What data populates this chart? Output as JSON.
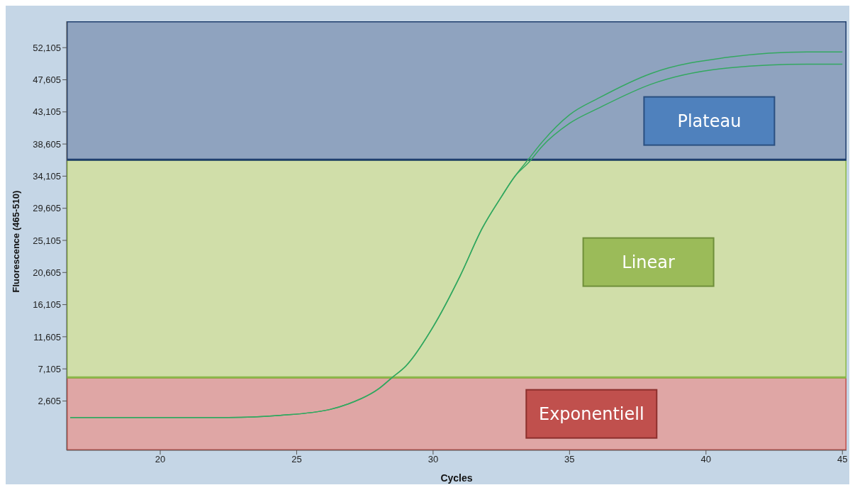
{
  "chart_data": {
    "type": "line",
    "xlabel": "Cycles",
    "ylabel": "Fluorescence (465-510)",
    "x": [
      16.7,
      20,
      22.5,
      24.4,
      26.2,
      26.9,
      28.0,
      28.5,
      29.0,
      30.0,
      31.0,
      31.8,
      32.5,
      33.0,
      33.5,
      34.0,
      35.0,
      36.1,
      38.0,
      40.9,
      43.7,
      45.0
    ],
    "series": [
      {
        "color": "#33a860",
        "values": [
          300,
          300,
          300,
          600,
          1400,
          2200,
          4300,
          5900,
          7500,
          13000,
          20200,
          26800,
          31200,
          34100,
          36500,
          38900,
          42700,
          45100,
          48500,
          50800,
          51500,
          51500
        ]
      },
      {
        "color": "#33a860",
        "values": [
          300,
          300,
          300,
          600,
          1400,
          2200,
          4300,
          5900,
          7500,
          13000,
          20200,
          26800,
          31200,
          34100,
          36000,
          38300,
          41500,
          43700,
          47000,
          49300,
          49800,
          49800
        ]
      }
    ],
    "xlim": [
      16.57,
      45.15
    ],
    "xticks": [
      20,
      25,
      30,
      35,
      40,
      45
    ],
    "ylim": [
      -4300,
      55800
    ],
    "yticks": [
      {
        "value": 2605,
        "label": "2,605"
      },
      {
        "value": 7105,
        "label": "7,105"
      },
      {
        "value": 11605,
        "label": "11,605"
      },
      {
        "value": 16105,
        "label": "16,105"
      },
      {
        "value": 20605,
        "label": "20,605"
      },
      {
        "value": 25105,
        "label": "25,105"
      },
      {
        "value": 29605,
        "label": "29,605"
      },
      {
        "value": 34105,
        "label": "34,105"
      },
      {
        "value": 38605,
        "label": "38,605"
      },
      {
        "value": 43105,
        "label": "43,105"
      },
      {
        "value": 47605,
        "label": "47,605"
      },
      {
        "value": 52105,
        "label": "52,105"
      }
    ],
    "bands": [
      {
        "axis": "y",
        "from": -4300,
        "to": 5900,
        "label": "Exponentiell",
        "color": "#dfa6a5"
      },
      {
        "axis": "y",
        "from": 5900,
        "to": 36400,
        "label": "Linear",
        "color": "#d0dea9"
      },
      {
        "axis": "y",
        "from": 36400,
        "to": 55800,
        "label": "Plateau",
        "color": "#8fa3bf"
      }
    ],
    "grid": false,
    "legend": false,
    "marker": "none",
    "line_style": "solid"
  }
}
